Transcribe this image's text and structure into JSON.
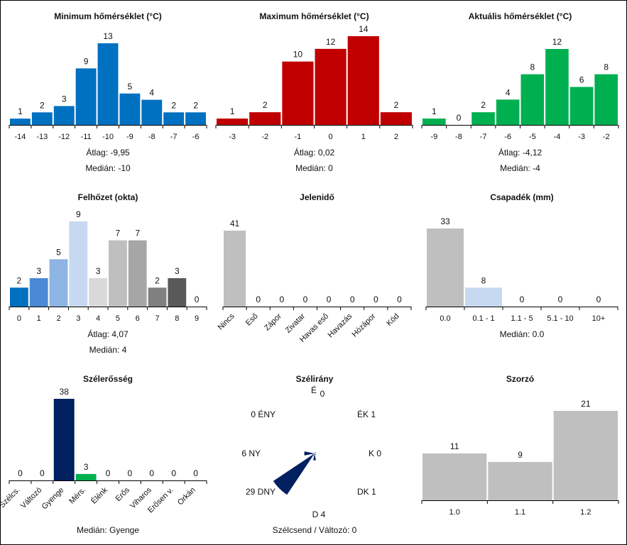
{
  "labels": {
    "atlag": "Átlag:",
    "median": "Medián:"
  },
  "chart_data": [
    {
      "id": "min-temp",
      "type": "bar",
      "title": "Minimum hőmérséklet (°C)",
      "categories": [
        "-14",
        "-13",
        "-12",
        "-11",
        "-10",
        "-9",
        "-8",
        "-7",
        "-6"
      ],
      "values": [
        1,
        2,
        3,
        9,
        13,
        5,
        4,
        2,
        2
      ],
      "colors": [
        "#0070c0"
      ],
      "ylim": [
        0,
        13
      ],
      "stats": {
        "atlag": "-9,95",
        "median": "-10"
      }
    },
    {
      "id": "max-temp",
      "type": "bar",
      "title": "Maximum hőmérséklet (°C)",
      "categories": [
        "-3",
        "-2",
        "-1",
        "0",
        "1",
        "2"
      ],
      "values": [
        1,
        2,
        10,
        12,
        14,
        2
      ],
      "colors": [
        "#c00000"
      ],
      "ylim": [
        0,
        14
      ],
      "stats": {
        "atlag": "0,02",
        "median": "0"
      }
    },
    {
      "id": "cur-temp",
      "type": "bar",
      "title": "Aktuális hőmérséklet (°C)",
      "categories": [
        "-9",
        "-8",
        "-7",
        "-6",
        "-5",
        "-4",
        "-3",
        "-2"
      ],
      "values": [
        1,
        0,
        2,
        4,
        8,
        12,
        6,
        8
      ],
      "colors": [
        "#00b050"
      ],
      "ylim": [
        0,
        12
      ],
      "stats": {
        "atlag": "-4,12",
        "median": "-4"
      }
    },
    {
      "id": "cloud",
      "type": "bar",
      "title": "Felhőzet (okta)",
      "categories": [
        "0",
        "1",
        "2",
        "3",
        "4",
        "5",
        "6",
        "7",
        "8",
        "9"
      ],
      "values": [
        2,
        3,
        5,
        9,
        3,
        7,
        7,
        2,
        3,
        0
      ],
      "colors": [
        "#0070c0",
        "#4a8ad4",
        "#8db4e2",
        "#c6d9f1",
        "#d9d9d9",
        "#bfbfbf",
        "#a6a6a6",
        "#808080",
        "#595959",
        "#404040"
      ],
      "ylim": [
        0,
        9
      ],
      "stats": {
        "atlag": "4,07",
        "median": "4"
      }
    },
    {
      "id": "weather",
      "type": "bar",
      "title": "Jelenidő",
      "categories": [
        "Nincs",
        "Eső",
        "Zápor",
        "Zivatar",
        "Havas eső",
        "Havazás",
        "Hózápor",
        "Köd"
      ],
      "values": [
        41,
        0,
        0,
        0,
        0,
        0,
        0,
        0
      ],
      "colors": [
        "#bfbfbf"
      ],
      "ylim": [
        0,
        41
      ],
      "rotated_labels": true
    },
    {
      "id": "precip",
      "type": "bar",
      "title": "Csapadék (mm)",
      "categories": [
        "0.0",
        "0.1 - 1",
        "1.1 - 5",
        "5.1 - 10",
        "10+"
      ],
      "values": [
        33,
        8,
        0,
        0,
        0
      ],
      "colors": [
        "#bfbfbf",
        "#c6d9f1",
        "#bfbfbf",
        "#bfbfbf",
        "#bfbfbf"
      ],
      "ylim": [
        0,
        33
      ],
      "stats": {
        "median": "0.0"
      }
    },
    {
      "id": "wind-strength",
      "type": "bar",
      "title": "Szélerősség",
      "categories": [
        "Szélcs.",
        "Változó",
        "Gyenge",
        "Mérs.",
        "Élénk",
        "Erős",
        "Viharos",
        "Erősen v.",
        "Orkán"
      ],
      "values": [
        0,
        0,
        38,
        3,
        0,
        0,
        0,
        0,
        0
      ],
      "colors": [
        "#002060",
        "#002060",
        "#002060",
        "#00b050",
        "#002060",
        "#002060",
        "#002060",
        "#002060",
        "#002060"
      ],
      "ylim": [
        0,
        38
      ],
      "rotated_labels": true,
      "stats": {
        "median": "Gyenge"
      }
    },
    {
      "id": "wind-dir",
      "type": "rose",
      "title": "Szélirány",
      "directions": [
        {
          "label": "É",
          "value": 0
        },
        {
          "label": "ÉK",
          "value": 1
        },
        {
          "label": "K",
          "value": 0
        },
        {
          "label": "DK",
          "value": 1
        },
        {
          "label": "D",
          "value": 4
        },
        {
          "label": "DNY",
          "value": 29
        },
        {
          "label": "NY",
          "value": 6
        },
        {
          "label": "ÉNY",
          "value": 0
        }
      ],
      "colors": [
        "#002060"
      ],
      "footer_label": "Szélcsend / Változó:",
      "footer_value": "0"
    },
    {
      "id": "multiplier",
      "type": "bar",
      "title": "Szorzó",
      "categories": [
        "1.0",
        "1.1",
        "1.2"
      ],
      "values": [
        11,
        9,
        21
      ],
      "colors": [
        "#bfbfbf"
      ],
      "ylim": [
        0,
        21
      ]
    }
  ]
}
